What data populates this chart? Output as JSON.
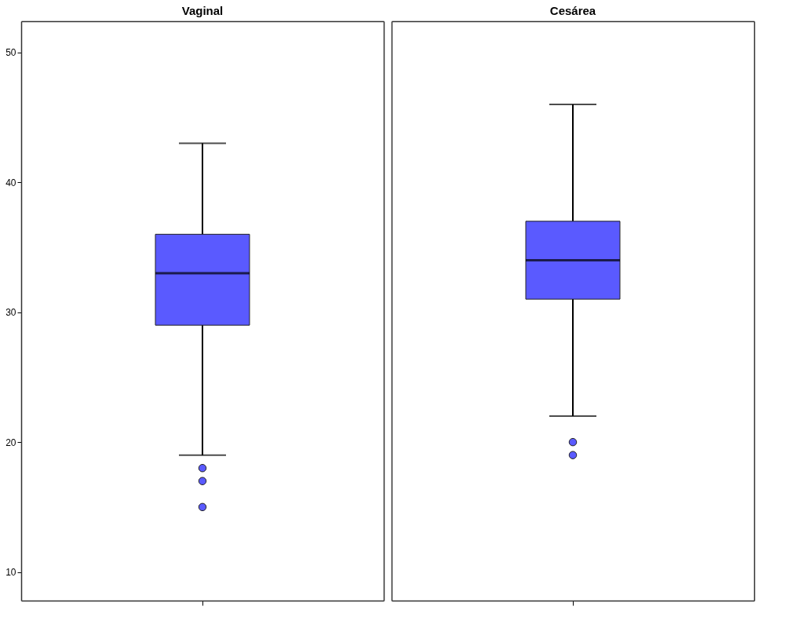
{
  "chart_data": {
    "type": "box",
    "categories": [
      "Vaginal",
      "Cesárea"
    ],
    "ylim": [
      7.8,
      52.4
    ],
    "yticks": [
      10,
      20,
      30,
      40,
      50
    ],
    "series": [
      {
        "color": "#5a5aff",
        "boxes": [
          {
            "low": 19,
            "q1": 29,
            "median": 33,
            "q3": 36,
            "high": 43,
            "outliers": [
              18,
              17,
              15
            ]
          },
          {
            "low": 22,
            "q1": 31,
            "median": 34,
            "q3": 37,
            "high": 46,
            "outliers": [
              20,
              19
            ]
          }
        ]
      }
    ]
  }
}
